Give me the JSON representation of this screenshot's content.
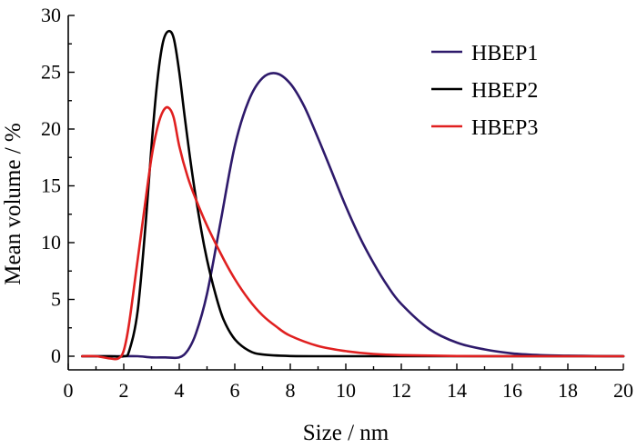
{
  "chart_data": {
    "type": "line",
    "xlabel": "Size / nm",
    "ylabel": "Mean volume / %",
    "xlim": [
      0,
      20
    ],
    "ylim": [
      0,
      30
    ],
    "x_ticks": [
      0,
      2,
      4,
      6,
      8,
      10,
      12,
      14,
      16,
      18,
      20
    ],
    "y_ticks": [
      0,
      5,
      10,
      15,
      20,
      25,
      30
    ],
    "grid": false,
    "legend_position": "top-right",
    "series": [
      {
        "name": "HBEP1",
        "color": "#2e1a6b",
        "x": [
          0.5,
          1.0,
          1.5,
          2.0,
          2.5,
          3.0,
          3.5,
          4.0,
          4.3,
          4.6,
          5.0,
          5.5,
          6.0,
          6.5,
          7.0,
          7.5,
          8.0,
          8.5,
          9.0,
          9.5,
          10.0,
          10.5,
          11.0,
          11.5,
          12.0,
          13.0,
          14.0,
          15.0,
          16.0,
          17.0,
          18.0,
          19.0,
          20.0
        ],
        "y": [
          0,
          0,
          0,
          0,
          0,
          -0.1,
          -0.1,
          -0.1,
          0.5,
          2.0,
          5.5,
          12.0,
          18.5,
          22.5,
          24.5,
          24.9,
          24.0,
          22.0,
          19.2,
          16.2,
          13.2,
          10.5,
          8.2,
          6.2,
          4.6,
          2.4,
          1.2,
          0.6,
          0.25,
          0.1,
          0.05,
          0.02,
          0
        ]
      },
      {
        "name": "HBEP2",
        "color": "#000000",
        "x": [
          0.5,
          1.0,
          1.5,
          2.0,
          2.2,
          2.5,
          2.8,
          3.0,
          3.2,
          3.4,
          3.6,
          3.8,
          4.0,
          4.2,
          4.5,
          4.8,
          5.0,
          5.3,
          5.6,
          6.0,
          6.5,
          7.0,
          8.0,
          10.0,
          12.0,
          15.0,
          20.0
        ],
        "y": [
          0,
          0,
          0,
          0,
          0.5,
          4.0,
          12.0,
          18.5,
          24.0,
          27.5,
          28.6,
          28.0,
          25.0,
          21.0,
          15.5,
          11.0,
          8.5,
          5.5,
          3.2,
          1.5,
          0.5,
          0.15,
          0.02,
          0,
          0,
          0,
          0
        ]
      },
      {
        "name": "HBEP3",
        "color": "#e02020",
        "x": [
          0.5,
          1.0,
          1.5,
          1.8,
          2.0,
          2.2,
          2.5,
          2.8,
          3.0,
          3.2,
          3.4,
          3.6,
          3.8,
          4.0,
          4.3,
          4.6,
          5.0,
          5.5,
          6.0,
          6.5,
          7.0,
          7.5,
          8.0,
          9.0,
          10.0,
          11.0,
          12.0,
          14.0,
          16.0,
          20.0
        ],
        "y": [
          0,
          0,
          -0.2,
          -0.2,
          0.5,
          3.0,
          8.5,
          14.0,
          17.5,
          20.0,
          21.5,
          21.9,
          21.0,
          18.5,
          15.8,
          13.8,
          11.5,
          9.0,
          6.8,
          5.0,
          3.6,
          2.6,
          1.8,
          0.9,
          0.45,
          0.2,
          0.1,
          0.02,
          0,
          0
        ]
      }
    ]
  }
}
